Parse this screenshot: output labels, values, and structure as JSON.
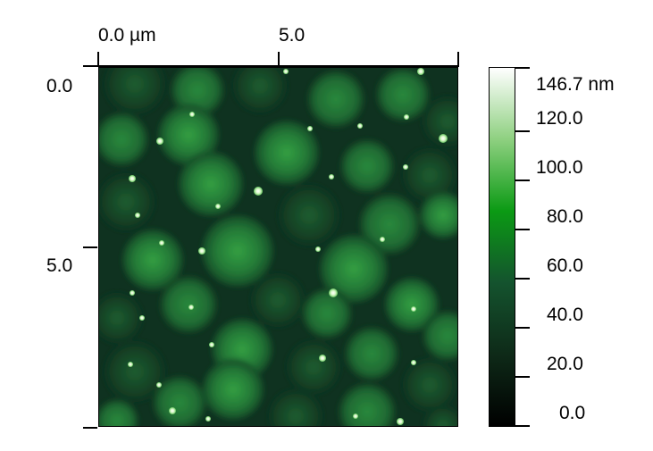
{
  "x_axis": {
    "labels": [
      "0.0 µm",
      "5.0"
    ],
    "values": [
      0.0,
      5.0
    ],
    "unit": "µm"
  },
  "y_axis": {
    "labels": [
      "0.0",
      "5.0"
    ],
    "values": [
      0.0,
      5.0
    ]
  },
  "colorbar": {
    "labels": [
      "146.7 nm",
      "120.0",
      "100.0",
      "80.0",
      "60.0",
      "40.0",
      "20.0",
      "0.0"
    ],
    "max_value": 146.7,
    "min_value": 0.0,
    "unit": "nm",
    "stops": [
      "#000000",
      "#0e2a18",
      "#14532e",
      "#0b9a14",
      "#8ed080",
      "#ffffff"
    ]
  },
  "image": {
    "description_colors": {
      "dark": "#0a2414",
      "grain": "#1c6a34",
      "bright_grain": "#2f8f3e",
      "particle": "#e8ffd8"
    }
  }
}
